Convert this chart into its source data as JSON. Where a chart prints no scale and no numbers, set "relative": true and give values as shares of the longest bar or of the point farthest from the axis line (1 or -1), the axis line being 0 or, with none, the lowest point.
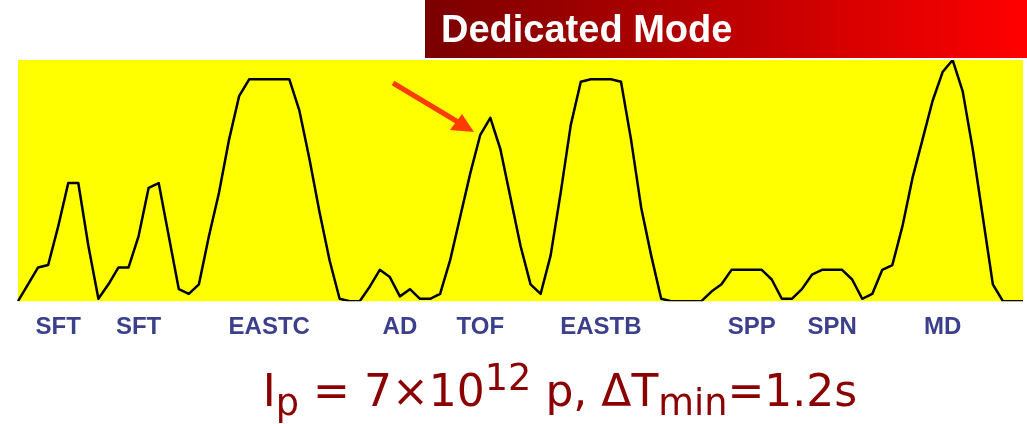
{
  "chart_data": {
    "type": "line",
    "title": "Dedicated Mode",
    "relative": true,
    "marker": "none",
    "line_style": "solid",
    "categories": [
      null,
      null,
      null,
      null,
      "SFT",
      null,
      null,
      null,
      null,
      null,
      null,
      null,
      "SFT",
      null,
      null,
      null,
      null,
      null,
      null,
      null,
      null,
      null,
      null,
      null,
      null,
      "EASTC",
      null,
      null,
      null,
      null,
      null,
      null,
      null,
      null,
      null,
      null,
      null,
      null,
      "AD",
      null,
      null,
      null,
      null,
      null,
      null,
      null,
      "TOF",
      null,
      null,
      null,
      null,
      null,
      null,
      null,
      null,
      null,
      null,
      null,
      "EASTB",
      null,
      null,
      null,
      null,
      null,
      null,
      null,
      null,
      null,
      null,
      null,
      null,
      null,
      null,
      "SPP",
      null,
      null,
      null,
      null,
      null,
      null,
      null,
      "SPN",
      null,
      null,
      null,
      null,
      null,
      null,
      null,
      null,
      null,
      null,
      "MD",
      null,
      null,
      null,
      null,
      null,
      null,
      null,
      null
    ],
    "series": [
      {
        "color": "#000000",
        "values": [
          0,
          0.07,
          0.14,
          0.15,
          0.31,
          0.49,
          0.49,
          0.23,
          0.01,
          0.07,
          0.14,
          0.14,
          0.27,
          0.47,
          0.49,
          0.27,
          0.05,
          0.03,
          0.07,
          0.27,
          0.45,
          0.67,
          0.85,
          0.92,
          0.92,
          0.92,
          0.92,
          0.92,
          0.79,
          0.59,
          0.37,
          0.17,
          0.01,
          0,
          0,
          0.06,
          0.13,
          0.1,
          0.02,
          0.05,
          0.01,
          0.01,
          0.03,
          0.17,
          0.35,
          0.53,
          0.69,
          0.76,
          0.63,
          0.43,
          0.23,
          0.07,
          0.03,
          0.19,
          0.45,
          0.73,
          0.91,
          0.92,
          0.92,
          0.92,
          0.91,
          0.67,
          0.39,
          0.19,
          0.01,
          0,
          0,
          0,
          0,
          0.04,
          0.07,
          0.13,
          0.13,
          0.13,
          0.13,
          0.09,
          0.01,
          0.01,
          0.05,
          0.11,
          0.13,
          0.13,
          0.13,
          0.09,
          0.01,
          0.03,
          0.13,
          0.15,
          0.31,
          0.51,
          0.67,
          0.83,
          0.95,
          1,
          0.87,
          0.63,
          0.35,
          0.07,
          0,
          0,
          0
        ]
      }
    ],
    "annotations": [
      "I$_{p}$ = 7×10$^{12}$ p, ΔT$_{min}$=1.2s"
    ]
  }
}
